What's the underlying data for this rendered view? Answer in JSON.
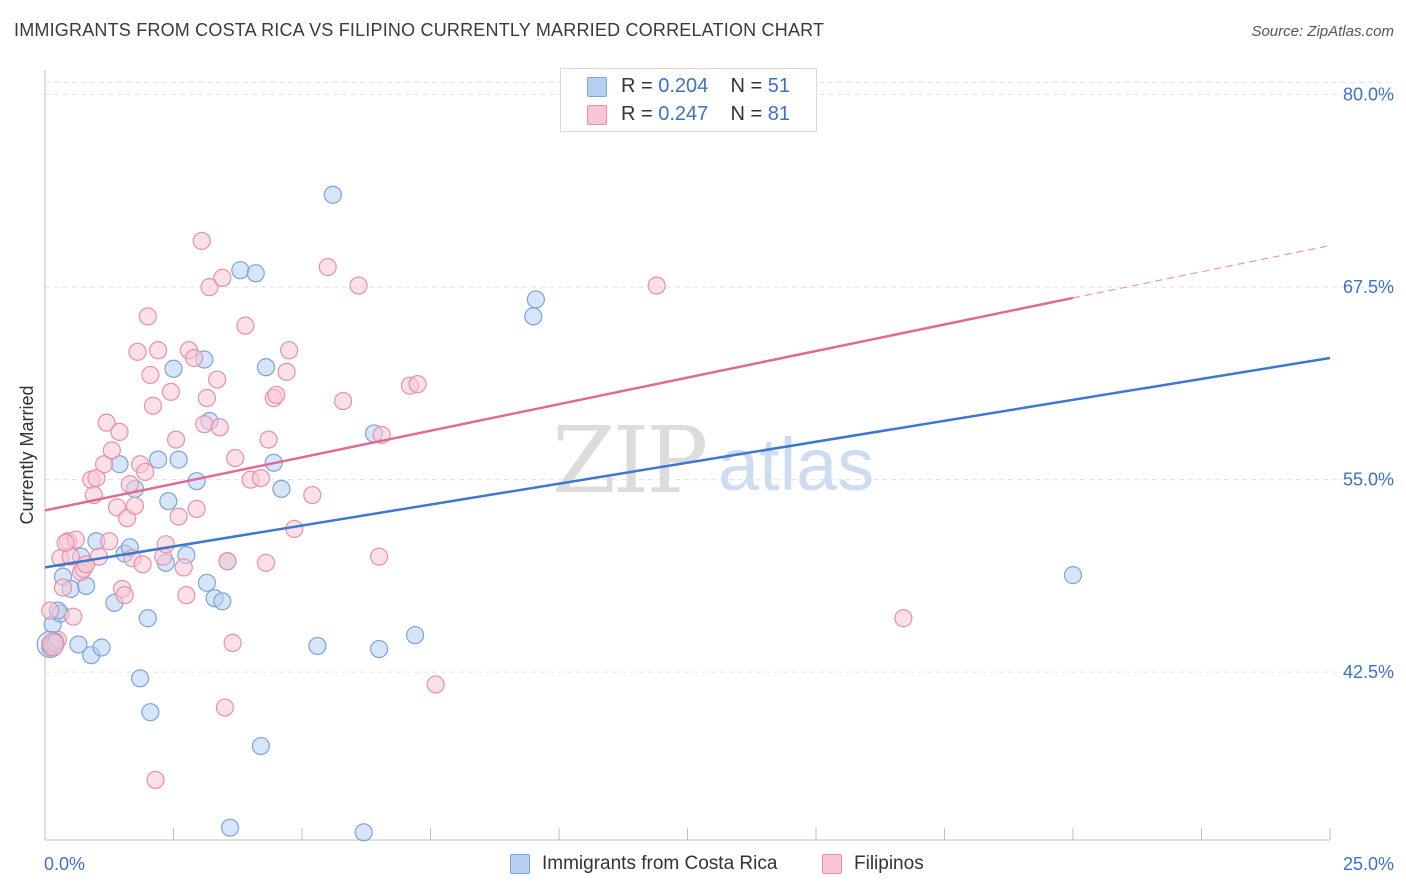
{
  "header": {
    "title": "IMMIGRANTS FROM COSTA RICA VS FILIPINO CURRENTLY MARRIED CORRELATION CHART",
    "source": "Source: ZipAtlas.com"
  },
  "legend_top": {
    "rows": [
      {
        "r_label": "R =",
        "r_value": "0.204",
        "n_label": "N =",
        "n_value": "51"
      },
      {
        "r_label": "R =",
        "r_value": "0.247",
        "n_label": "N =",
        "n_value": "81"
      }
    ]
  },
  "legend_bottom": {
    "items": [
      {
        "label": "Immigrants from Costa Rica"
      },
      {
        "label": "Filipinos"
      }
    ]
  },
  "watermark": {
    "zip": "ZIP",
    "atlas": "atlas"
  },
  "colors": {
    "blue_fill": "#b7d0f2",
    "blue_stroke": "#7aa4de",
    "blue_line": "#3b78d0",
    "pink_fill": "#f7c6d4",
    "pink_stroke": "#e890ab",
    "pink_line": "#e06a93",
    "tick_label": "#3a72c9",
    "grid": "#e2e2e2"
  },
  "chart_data": {
    "type": "scatter",
    "title": "IMMIGRANTS FROM COSTA RICA VS FILIPINO CURRENTLY MARRIED CORRELATION CHART",
    "xlabel": "",
    "ylabel": "Currently Married",
    "xlim": [
      0,
      25
    ],
    "ylim": [
      31.6,
      81.6
    ],
    "x_tick_labels": [
      "0.0%",
      "25.0%"
    ],
    "y_ticks": [
      42.5,
      55.0,
      67.5,
      80.0
    ],
    "y_tick_labels": [
      "42.5%",
      "55.0%",
      "67.5%",
      "80.0%"
    ],
    "grid": "horizontal dashed",
    "legend_position": "top-center",
    "series": [
      {
        "name": "Immigrants from Costa Rica",
        "R": 0.204,
        "N": 51,
        "trend": {
          "x": [
            0,
            25
          ],
          "y": [
            49.3,
            62.9
          ]
        },
        "points": [
          [
            0.1,
            44.1
          ],
          [
            0.15,
            45.6
          ],
          [
            0.2,
            44.5
          ],
          [
            0.3,
            46.3
          ],
          [
            0.35,
            48.7
          ],
          [
            0.5,
            47.9
          ],
          [
            0.65,
            44.3
          ],
          [
            0.7,
            50.0
          ],
          [
            0.8,
            48.1
          ],
          [
            0.9,
            43.6
          ],
          [
            1.0,
            51.0
          ],
          [
            1.1,
            44.1
          ],
          [
            1.35,
            47.0
          ],
          [
            1.45,
            56.0
          ],
          [
            1.55,
            50.2
          ],
          [
            1.65,
            50.6
          ],
          [
            1.75,
            54.4
          ],
          [
            1.85,
            42.1
          ],
          [
            2.0,
            46.0
          ],
          [
            2.05,
            39.9
          ],
          [
            2.2,
            56.3
          ],
          [
            2.35,
            49.6
          ],
          [
            2.4,
            53.6
          ],
          [
            2.5,
            62.2
          ],
          [
            2.6,
            56.3
          ],
          [
            2.75,
            50.1
          ],
          [
            2.95,
            54.9
          ],
          [
            3.1,
            62.8
          ],
          [
            3.15,
            48.3
          ],
          [
            3.2,
            58.8
          ],
          [
            3.3,
            47.3
          ],
          [
            3.45,
            47.1
          ],
          [
            3.55,
            49.7
          ],
          [
            3.6,
            32.4
          ],
          [
            3.8,
            68.6
          ],
          [
            4.1,
            68.4
          ],
          [
            4.2,
            37.7
          ],
          [
            4.3,
            62.3
          ],
          [
            4.45,
            56.1
          ],
          [
            4.6,
            54.4
          ],
          [
            5.3,
            44.2
          ],
          [
            5.6,
            73.5
          ],
          [
            6.2,
            32.1
          ],
          [
            6.4,
            58.0
          ],
          [
            6.5,
            44.0
          ],
          [
            7.2,
            44.9
          ],
          [
            9.5,
            65.6
          ],
          [
            9.55,
            66.7
          ],
          [
            20.0,
            48.8
          ],
          [
            0.12,
            44.3
          ],
          [
            0.25,
            46.5
          ]
        ]
      },
      {
        "name": "Filipinos",
        "R": 0.247,
        "N": 81,
        "trend": {
          "x": [
            0,
            20
          ],
          "y": [
            53.0,
            66.8
          ]
        },
        "trend_dashed_extension": {
          "x": [
            20,
            25
          ],
          "y": [
            66.8,
            70.2
          ]
        },
        "points": [
          [
            0.1,
            46.5
          ],
          [
            0.15,
            44.3
          ],
          [
            0.2,
            44.4
          ],
          [
            0.3,
            49.9
          ],
          [
            0.35,
            48.0
          ],
          [
            0.45,
            51.0
          ],
          [
            0.5,
            50.0
          ],
          [
            0.55,
            46.1
          ],
          [
            0.6,
            51.1
          ],
          [
            0.7,
            49.0
          ],
          [
            0.75,
            49.2
          ],
          [
            0.8,
            49.5
          ],
          [
            0.9,
            55.0
          ],
          [
            0.95,
            54.0
          ],
          [
            1.0,
            55.1
          ],
          [
            1.05,
            50.0
          ],
          [
            1.15,
            56.0
          ],
          [
            1.2,
            58.7
          ],
          [
            1.25,
            51.0
          ],
          [
            1.3,
            56.9
          ],
          [
            1.4,
            53.2
          ],
          [
            1.45,
            58.1
          ],
          [
            1.5,
            47.9
          ],
          [
            1.55,
            47.5
          ],
          [
            1.6,
            52.5
          ],
          [
            1.65,
            54.7
          ],
          [
            1.7,
            49.9
          ],
          [
            1.75,
            53.3
          ],
          [
            1.8,
            63.3
          ],
          [
            1.85,
            56.0
          ],
          [
            1.9,
            49.5
          ],
          [
            1.95,
            55.5
          ],
          [
            2.0,
            65.6
          ],
          [
            2.05,
            61.8
          ],
          [
            2.1,
            59.8
          ],
          [
            2.15,
            35.5
          ],
          [
            2.2,
            63.4
          ],
          [
            2.3,
            50.0
          ],
          [
            2.35,
            50.8
          ],
          [
            2.45,
            60.7
          ],
          [
            2.55,
            57.6
          ],
          [
            2.6,
            52.6
          ],
          [
            2.7,
            49.3
          ],
          [
            2.75,
            47.5
          ],
          [
            2.8,
            63.4
          ],
          [
            2.9,
            62.9
          ],
          [
            2.95,
            53.1
          ],
          [
            3.05,
            70.5
          ],
          [
            3.1,
            58.6
          ],
          [
            3.15,
            60.3
          ],
          [
            3.2,
            67.5
          ],
          [
            3.35,
            61.5
          ],
          [
            3.4,
            58.4
          ],
          [
            3.45,
            68.1
          ],
          [
            3.5,
            40.2
          ],
          [
            3.55,
            49.7
          ],
          [
            3.65,
            44.4
          ],
          [
            3.7,
            56.4
          ],
          [
            3.9,
            65.0
          ],
          [
            4.0,
            55.0
          ],
          [
            4.2,
            55.1
          ],
          [
            4.35,
            57.6
          ],
          [
            4.45,
            60.3
          ],
          [
            4.5,
            60.5
          ],
          [
            4.7,
            62.0
          ],
          [
            4.75,
            63.4
          ],
          [
            4.85,
            51.8
          ],
          [
            5.2,
            54.0
          ],
          [
            5.5,
            68.8
          ],
          [
            5.8,
            60.1
          ],
          [
            6.1,
            67.6
          ],
          [
            6.5,
            50.0
          ],
          [
            6.55,
            57.9
          ],
          [
            7.1,
            61.1
          ],
          [
            7.25,
            61.2
          ],
          [
            7.6,
            41.7
          ],
          [
            11.9,
            67.6
          ],
          [
            16.7,
            46.0
          ],
          [
            0.25,
            44.6
          ],
          [
            0.4,
            50.9
          ],
          [
            4.3,
            49.6
          ]
        ]
      }
    ]
  }
}
